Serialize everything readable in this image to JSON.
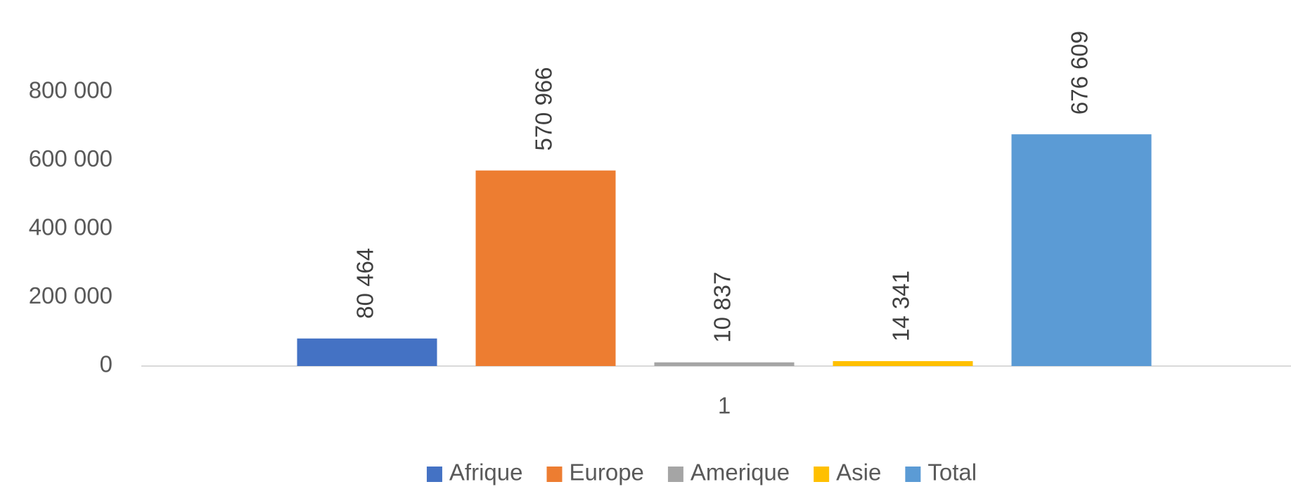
{
  "chart_data": {
    "type": "bar",
    "categories": [
      "1"
    ],
    "series": [
      {
        "name": "Afrique",
        "color": "#4472c4",
        "values": [
          80464
        ],
        "value_labels": [
          "80 464"
        ]
      },
      {
        "name": "Europe",
        "color": "#ed7d31",
        "values": [
          570966
        ],
        "value_labels": [
          "570 966"
        ]
      },
      {
        "name": "Amerique",
        "color": "#a5a5a5",
        "values": [
          10837
        ],
        "value_labels": [
          "10 837"
        ]
      },
      {
        "name": "Asie",
        "color": "#ffc000",
        "values": [
          14341
        ],
        "value_labels": [
          "14 341"
        ]
      },
      {
        "name": "Total",
        "color": "#5b9bd5",
        "values": [
          676609
        ],
        "value_labels": [
          "676 609"
        ]
      }
    ],
    "ylim": [
      0,
      800000
    ],
    "yticks": [
      0,
      {
        "value": 200000,
        "label": "200 000"
      },
      {
        "value": 400000,
        "label": "400 000"
      },
      {
        "value": 600000,
        "label": "600 000"
      },
      {
        "value": 800000,
        "label": "800 000"
      }
    ],
    "grid": false,
    "legend": "bottom"
  }
}
